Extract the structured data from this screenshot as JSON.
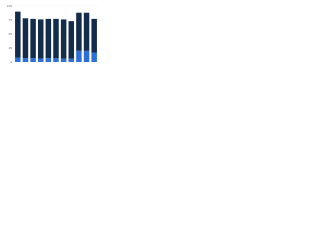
{
  "chart_data": {
    "type": "stacked-bar",
    "series": [
      {
        "color": "#2e6fd8",
        "values": [
          8,
          7,
          7,
          6,
          7,
          7,
          6,
          6,
          20,
          20,
          17
        ]
      },
      {
        "color": "#132c4c",
        "values": [
          82,
          71,
          70,
          70,
          70,
          70,
          70,
          67,
          68,
          68,
          60
        ]
      }
    ],
    "ylim": [
      0,
      100
    ],
    "yticks": [
      0,
      25,
      50,
      75,
      100
    ],
    "grid": true
  }
}
